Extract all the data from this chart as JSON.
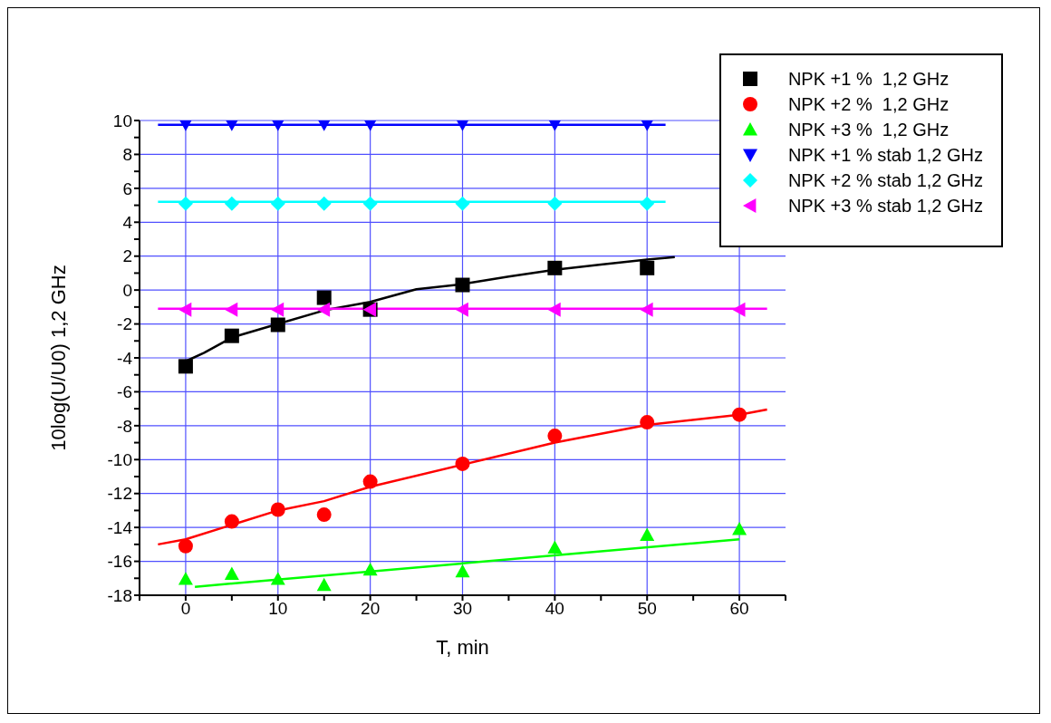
{
  "chart_data": {
    "type": "scatter",
    "xlabel": "T, min",
    "ylabel": "10log(U/U0) 1,2 GHz",
    "xlim": [
      -5,
      65
    ],
    "ylim": [
      -18,
      10
    ],
    "xticks": [
      {
        "value": -5,
        "label": null
      },
      0,
      {
        "value": 5,
        "label": null
      },
      10,
      {
        "value": 15,
        "label": null
      },
      20,
      {
        "value": 25,
        "label": null
      },
      30,
      {
        "value": 35,
        "label": null
      },
      40,
      {
        "value": 45,
        "label": null
      },
      50,
      {
        "value": 55,
        "label": null
      },
      60,
      {
        "value": 65,
        "label": null
      }
    ],
    "yticks": [
      -18,
      {
        "value": -17,
        "label": null
      },
      -16,
      {
        "value": -15,
        "label": null
      },
      -14,
      {
        "value": -13,
        "label": null
      },
      -12,
      {
        "value": -11,
        "label": null
      },
      -10,
      {
        "value": -9,
        "label": null
      },
      -8,
      {
        "value": -7,
        "label": null
      },
      -6,
      {
        "value": -5,
        "label": null
      },
      -4,
      {
        "value": -3,
        "label": null
      },
      -2,
      {
        "value": -1,
        "label": null
      },
      0,
      {
        "value": 1,
        "label": null
      },
      2,
      {
        "value": 3,
        "label": null
      },
      4,
      {
        "value": 5,
        "label": null
      },
      6,
      {
        "value": 7,
        "label": null
      },
      8,
      {
        "value": 9,
        "label": null
      },
      10
    ],
    "grid": true,
    "legend": "top right",
    "x": [
      0,
      5,
      10,
      15,
      20,
      30,
      40,
      50,
      60
    ],
    "series": [
      {
        "name": "NPK +1 %  1,2 GHz",
        "color": "#000000",
        "marker": "square",
        "values": [
          -4.5,
          -2.7,
          -2.05,
          -0.45,
          -1.15,
          0.3,
          1.3,
          1.3,
          null
        ]
      },
      {
        "name": "NPK +2 %  1,2 GHz",
        "color": "#ff0000",
        "marker": "circle",
        "values": [
          -15.1,
          -13.65,
          -12.95,
          -13.25,
          -11.3,
          -10.25,
          -8.6,
          -7.8,
          -7.35
        ]
      },
      {
        "name": "NPK +3 %  1,2 GHz",
        "color": "#00ff00",
        "marker": "triangle",
        "values": [
          -17.05,
          -16.75,
          -17.05,
          -17.4,
          -16.5,
          -16.6,
          -15.2,
          -14.45,
          -14.1
        ]
      },
      {
        "name": "NPK +1 % stab 1,2 GHz",
        "color": "#0000ff",
        "marker": "triangle-down",
        "values": [
          9.8,
          9.8,
          9.8,
          9.8,
          9.8,
          9.8,
          9.8,
          9.8,
          null
        ]
      },
      {
        "name": "NPK +2 % stab 1,2 GHz",
        "color": "#00ffff",
        "marker": "diamond",
        "values": [
          5.1,
          5.1,
          5.1,
          5.1,
          5.1,
          5.1,
          5.1,
          5.1,
          null
        ]
      },
      {
        "name": "NPK +3 % stab 1,2 GHz",
        "color": "#ff00ff",
        "marker": "triangle-left",
        "values": [
          -1.15,
          -1.15,
          -1.15,
          -1.15,
          -1.15,
          -1.15,
          -1.15,
          -1.15,
          -1.15
        ]
      },
      {
        "type": "line",
        "color": "#000000",
        "marker": "none",
        "x": [
          0,
          2,
          5,
          10,
          15,
          20,
          25,
          30,
          35,
          40,
          45,
          50,
          53
        ],
        "values": [
          -4.2,
          -3.7,
          -2.8,
          -2.0,
          -1.2,
          -0.7,
          0.05,
          0.35,
          0.8,
          1.2,
          1.5,
          1.8,
          1.95
        ]
      },
      {
        "type": "line",
        "color": "#ff0000",
        "marker": "none",
        "x": [
          -3,
          0,
          10,
          15,
          20,
          30,
          40,
          50,
          60,
          63
        ],
        "values": [
          -15.0,
          -14.7,
          -13.0,
          -12.45,
          -11.6,
          -10.3,
          -9.0,
          -7.95,
          -7.35,
          -7.05
        ]
      },
      {
        "type": "line",
        "color": "#00ff00",
        "marker": "none",
        "x": [
          1,
          60
        ],
        "values": [
          -17.5,
          -14.7
        ]
      },
      {
        "type": "line",
        "color": "#0000ff",
        "marker": "none",
        "x": [
          -3,
          52
        ],
        "values": [
          9.75,
          9.75
        ]
      },
      {
        "type": "line",
        "color": "#00ffff",
        "marker": "none",
        "x": [
          -3,
          52
        ],
        "values": [
          5.2,
          5.2
        ]
      },
      {
        "type": "line",
        "color": "#ff00ff",
        "marker": "none",
        "x": [
          -3,
          63
        ],
        "values": [
          -1.1,
          -1.1
        ]
      }
    ]
  }
}
